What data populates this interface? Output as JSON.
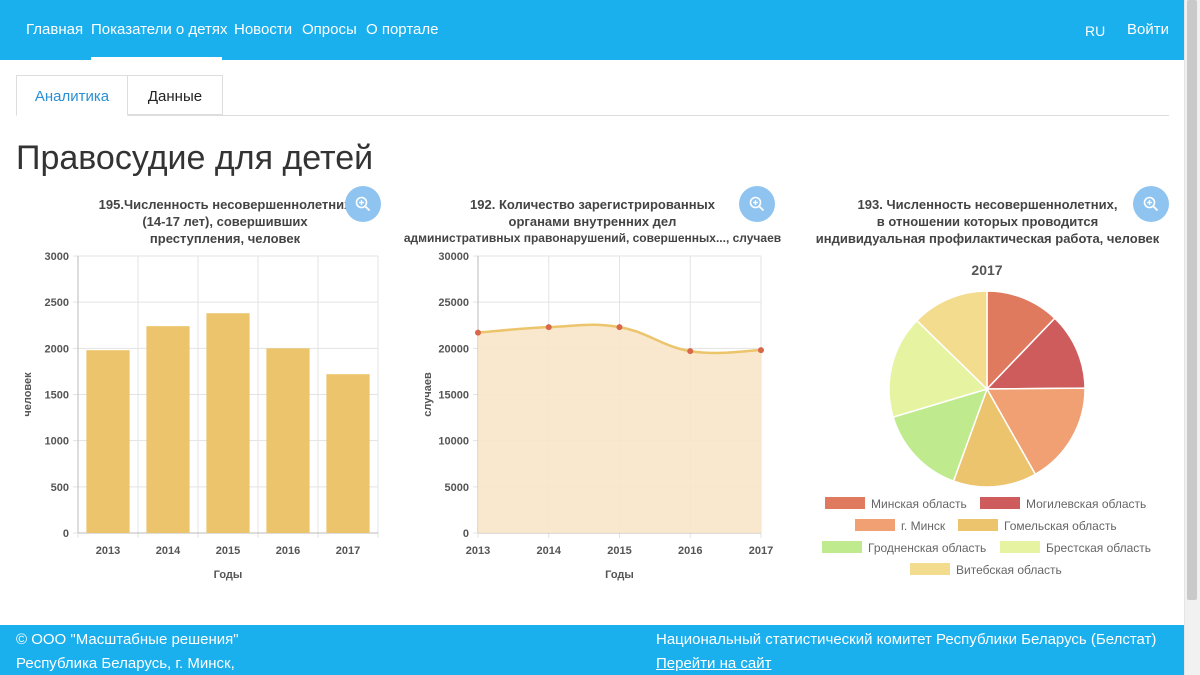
{
  "nav": {
    "items": [
      "Главная",
      "Показатели о детях",
      "Новости",
      "Опросы",
      "О портале"
    ],
    "lang": "RU",
    "login": "Войти"
  },
  "tabs": [
    "Аналитика",
    "Данные"
  ],
  "page_title": "Правосудие для детей",
  "charts": {
    "c1": {
      "title_lines": [
        "195.Численность  несовершеннолетних",
        "(14-17 лет), совершивших",
        "преступления, человек"
      ]
    },
    "c2": {
      "title_lines": [
        "192. Количество зарегистрированных",
        "органами внутренних дел",
        "административных правонарушений, совершенных..., случаев"
      ]
    },
    "c3": {
      "title_lines": [
        "193. Численность несовершеннолетних,",
        "в отношении которых проводится",
        "индивидуальная профилактическая работа, человек"
      ]
    }
  },
  "chart_data": [
    {
      "type": "bar",
      "categories": [
        "2013",
        "2014",
        "2015",
        "2016",
        "2017"
      ],
      "values": [
        1980,
        2240,
        2380,
        2000,
        1720
      ],
      "xlabel": "Годы",
      "ylabel": "человек",
      "ylim": [
        0,
        3000
      ],
      "yticks": [
        0,
        500,
        1000,
        1500,
        2000,
        2500,
        3000
      ],
      "grid": true,
      "color": "#ecc46b"
    },
    {
      "type": "area",
      "categories": [
        "2013",
        "2014",
        "2015",
        "2016",
        "2017"
      ],
      "values": [
        21700,
        22300,
        22300,
        19700,
        19800
      ],
      "xlabel": "Годы",
      "ylabel": "случаев",
      "ylim": [
        0,
        30000
      ],
      "yticks": [
        0,
        5000,
        10000,
        15000,
        20000,
        25000,
        30000
      ],
      "grid": true,
      "line_color": "#ecc46b",
      "fill_color": "#f8e6c8",
      "point_color": "#d8684a"
    },
    {
      "type": "pie",
      "title": "2017",
      "slices": [
        {
          "label": "Минская область",
          "value": 11.5,
          "color": "#e07a5f"
        },
        {
          "label": "Могилевская область",
          "value": 12.0,
          "color": "#cf5c5c"
        },
        {
          "label": "г. Минск",
          "value": 16.0,
          "color": "#f0a073"
        },
        {
          "label": "Гомельская область",
          "value": 13.0,
          "color": "#edc46e"
        },
        {
          "label": "Гродненская область",
          "value": 14.0,
          "color": "#bfeb8e"
        },
        {
          "label": "Брестская область",
          "value": 16.0,
          "color": "#e6f4a2"
        },
        {
          "label": "Витебская область",
          "value": 12.0,
          "color": "#f3dc8e"
        }
      ],
      "legend": "bottom"
    }
  ],
  "footer": {
    "left1": "© ООО \"Масштабные решения\"",
    "left2": "Республика Беларусь, г. Минск,",
    "right1": "Национальный статистический комитет Республики Беларусь (Белстат)",
    "right2": "Перейти на сайт"
  },
  "colors": {
    "brand": "#1aafed",
    "tab_active": "#2a8fd4",
    "zoom_button": "#90c4f0"
  },
  "icons": {
    "zoom": "zoom-in-icon"
  }
}
